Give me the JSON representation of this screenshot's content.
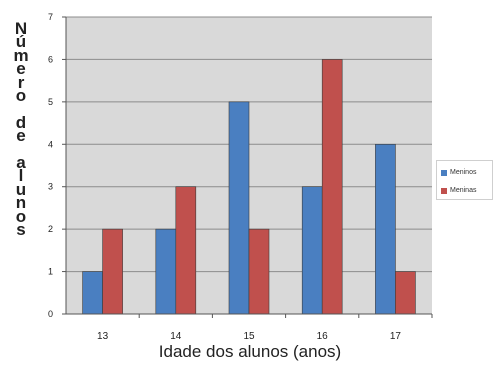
{
  "chart_data": {
    "type": "bar",
    "title": "",
    "xlabel": "Idade dos alunos (anos)",
    "ylabel": "Número de alunos",
    "categories": [
      "13",
      "14",
      "15",
      "16",
      "17"
    ],
    "series": [
      {
        "name": "Meninos",
        "values": [
          1,
          2,
          5,
          3,
          4
        ],
        "color": "#4a7fc1"
      },
      {
        "name": "Meninas",
        "values": [
          2,
          3,
          2,
          6,
          1
        ],
        "color": "#c0504d"
      }
    ],
    "ylim": [
      0,
      7
    ],
    "yticks": [
      "0",
      "1",
      "2",
      "3",
      "4",
      "5",
      "6",
      "7"
    ],
    "grid": true,
    "legend": "right",
    "plot_background": "#d9d9d9"
  }
}
